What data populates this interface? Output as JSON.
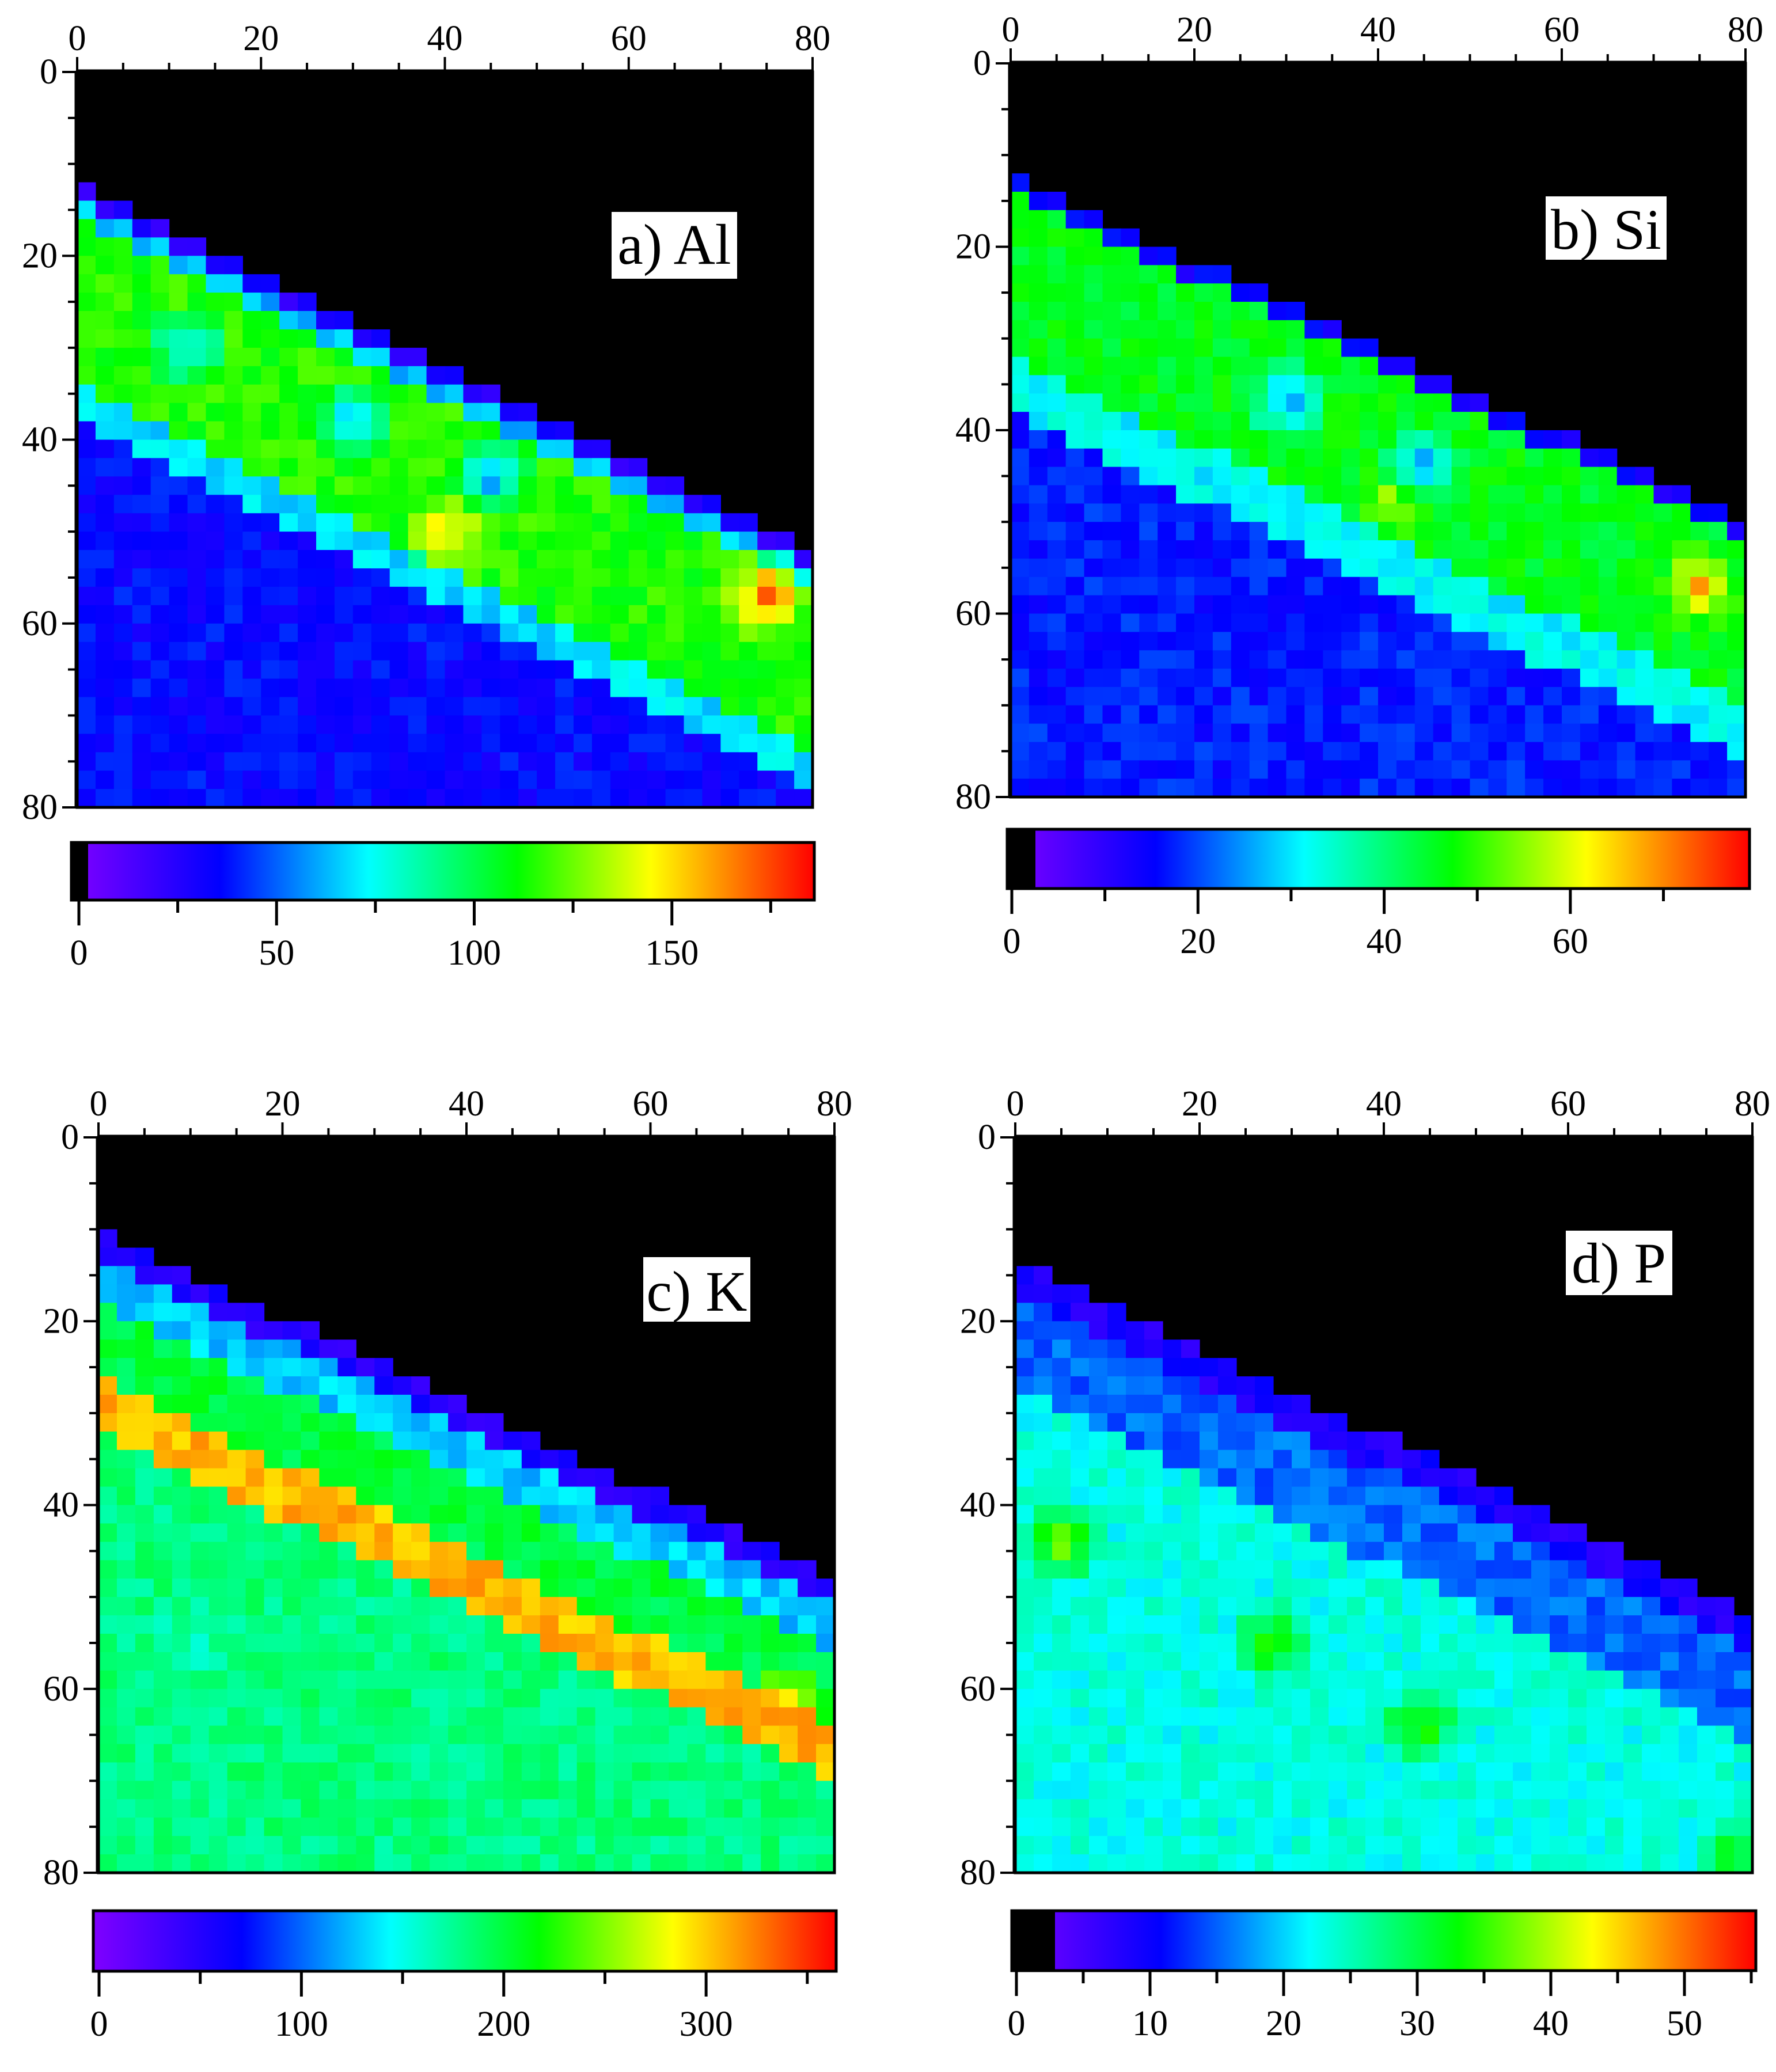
{
  "colormap": [
    "#000000",
    "#8000ff",
    "#0000ff",
    "#00ffff",
    "#00ff00",
    "#ffff00",
    "#ff0000"
  ],
  "chart_data": [
    {
      "type": "heatmap",
      "title": "a) Al",
      "x_ticks": [
        0,
        20,
        40,
        60,
        80
      ],
      "y_ticks": [
        0,
        20,
        40,
        60,
        80
      ],
      "xlim": [
        0,
        80
      ],
      "ylim": [
        0,
        80
      ],
      "colorbar": {
        "ticks": [
          0,
          50,
          100,
          150
        ],
        "range": [
          0,
          185
        ]
      },
      "surface": {
        "x": [
          0,
          80
        ],
        "y": [
          12,
          52
        ]
      },
      "bands": [
        {
          "name": "surface rim",
          "offset_start": 0,
          "offset_end": 2,
          "level": 0.15
        },
        {
          "name": "upper layer",
          "offset_start": 2,
          "offset_end": 4,
          "level": 0.35
        },
        {
          "name": "main layer",
          "offset_start": 4,
          "offset_end": 22,
          "level": 0.62
        },
        {
          "name": "lower transition",
          "offset_start": 22,
          "offset_end": 26,
          "level": 0.38
        },
        {
          "name": "substrate",
          "offset_start": 26,
          "offset_end": 90,
          "level": 0.2
        }
      ],
      "spots": [
        {
          "x": 75,
          "y": 57,
          "level": 0.93
        },
        {
          "x": 40,
          "y": 50,
          "level": 0.82
        },
        {
          "x": 12,
          "y": 30,
          "level": 0.35
        },
        {
          "x": 30,
          "y": 38,
          "level": 0.3
        },
        {
          "x": 45,
          "y": 44,
          "level": 0.3
        }
      ]
    },
    {
      "type": "heatmap",
      "title": "b) Si",
      "x_ticks": [
        0,
        20,
        40,
        60,
        80
      ],
      "y_ticks": [
        0,
        20,
        40,
        60,
        80
      ],
      "xlim": [
        0,
        80
      ],
      "ylim": [
        0,
        80
      ],
      "colorbar": {
        "ticks": [
          0,
          20,
          40,
          60
        ],
        "range": [
          0,
          79
        ]
      },
      "surface": {
        "x": [
          0,
          80
        ],
        "y": [
          12,
          50
        ]
      },
      "bands": [
        {
          "name": "surface rim",
          "offset_start": 0,
          "offset_end": 2,
          "level": 0.18
        },
        {
          "name": "main layer",
          "offset_start": 2,
          "offset_end": 20,
          "level": 0.58
        },
        {
          "name": "lower transition",
          "offset_start": 20,
          "offset_end": 26,
          "level": 0.4
        },
        {
          "name": "substrate",
          "offset_start": 26,
          "offset_end": 90,
          "level": 0.22
        }
      ],
      "spots": [
        {
          "x": 75,
          "y": 57,
          "level": 0.85
        },
        {
          "x": 42,
          "y": 48,
          "level": 0.72
        },
        {
          "x": 30,
          "y": 37,
          "level": 0.3
        },
        {
          "x": 45,
          "y": 44,
          "level": 0.3
        }
      ]
    },
    {
      "type": "heatmap",
      "title": "c) K",
      "x_ticks": [
        0,
        20,
        40,
        60,
        80
      ],
      "y_ticks": [
        0,
        20,
        40,
        60,
        80
      ],
      "xlim": [
        0,
        80
      ],
      "ylim": [
        0,
        80
      ],
      "colorbar": {
        "ticks": [
          0,
          100,
          200,
          300
        ],
        "range": [
          0,
          362
        ]
      },
      "surface": {
        "x": [
          0,
          80
        ],
        "y": [
          10,
          48
        ]
      },
      "bands": [
        {
          "name": "surface rim",
          "offset_start": 0,
          "offset_end": 3,
          "level": 0.15
        },
        {
          "name": "upper layer",
          "offset_start": 3,
          "offset_end": 8,
          "level": 0.36
        },
        {
          "name": "middle layer",
          "offset_start": 8,
          "offset_end": 16,
          "level": 0.55
        },
        {
          "name": "K-rich band",
          "offset_start": 16,
          "offset_end": 22,
          "level": 0.84
        },
        {
          "name": "lower layer",
          "offset_start": 22,
          "offset_end": 90,
          "level": 0.5
        }
      ],
      "spots": [
        {
          "x": 75,
          "y": 62,
          "level": 0.86
        },
        {
          "x": 10,
          "y": 55,
          "level": 0.44
        }
      ]
    },
    {
      "type": "heatmap",
      "title": "d) P",
      "x_ticks": [
        0,
        20,
        40,
        60,
        80
      ],
      "y_ticks": [
        0,
        20,
        40,
        60,
        80
      ],
      "xlim": [
        0,
        80
      ],
      "ylim": [
        0,
        80
      ],
      "colorbar": {
        "ticks": [
          0,
          10,
          20,
          30,
          40,
          50
        ],
        "range": [
          0,
          55
        ]
      },
      "surface": {
        "x": [
          0,
          80
        ],
        "y": [
          13,
          52
        ]
      },
      "bands": [
        {
          "name": "surface rim",
          "offset_start": 0,
          "offset_end": 4,
          "level": 0.16
        },
        {
          "name": "upper layer",
          "offset_start": 4,
          "offset_end": 14,
          "level": 0.28
        },
        {
          "name": "middle layer",
          "offset_start": 14,
          "offset_end": 90,
          "level": 0.42
        }
      ],
      "spots": [
        {
          "x": 5,
          "y": 44,
          "level": 0.72
        },
        {
          "x": 28,
          "y": 55,
          "level": 0.66
        },
        {
          "x": 44,
          "y": 64,
          "level": 0.66
        },
        {
          "x": 78,
          "y": 78,
          "level": 0.6
        }
      ]
    }
  ]
}
